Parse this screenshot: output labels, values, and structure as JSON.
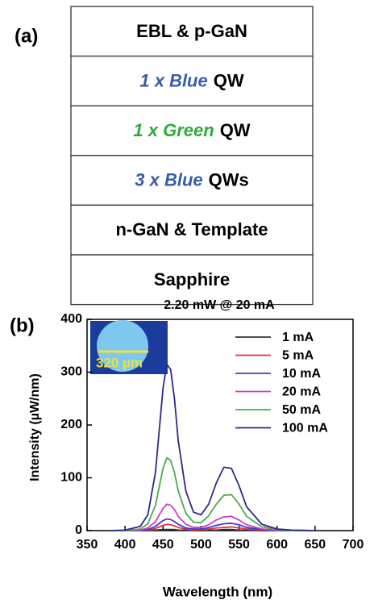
{
  "panel_a": {
    "label": "(a)",
    "layers": [
      {
        "parts": [
          {
            "text": "EBL & p-GaN"
          }
        ]
      },
      {
        "parts": [
          {
            "text": "1 x Blue",
            "color": "#3a5cad",
            "italic": true
          },
          {
            "text": "QW"
          }
        ]
      },
      {
        "parts": [
          {
            "text": "1 x Green",
            "color": "#2eaa3c",
            "italic": true
          },
          {
            "text": "QW"
          }
        ]
      },
      {
        "parts": [
          {
            "text": "3 x Blue",
            "color": "#3a5cad",
            "italic": true
          },
          {
            "text": "QWs"
          }
        ]
      },
      {
        "parts": [
          {
            "text": "n-GaN & Template"
          }
        ]
      },
      {
        "parts": [
          {
            "text": "Sapphire"
          }
        ]
      }
    ]
  },
  "chart_data": {
    "type": "line",
    "panel_label": "(b)",
    "title": "2.20 mW @ 20 mA",
    "x_label": "Wavelength (nm)",
    "y_label": "Intensity (µW/nm)",
    "inset_label": "320 µm",
    "x": [
      380,
      400,
      420,
      430,
      440,
      450,
      455,
      460,
      465,
      470,
      480,
      490,
      500,
      510,
      520,
      530,
      540,
      550,
      560,
      580,
      600,
      620,
      650
    ],
    "series": [
      {
        "name": "1 mA",
        "color": "#333333",
        "values": [
          0,
          0,
          0,
          0,
          1,
          2,
          2,
          2,
          2,
          1,
          1,
          0,
          0,
          1,
          1,
          2,
          2,
          1,
          1,
          0,
          0,
          0,
          0
        ]
      },
      {
        "name": "5 mA",
        "color": "#e8323c",
        "values": [
          0,
          0,
          0,
          1,
          4,
          10,
          12,
          11,
          9,
          6,
          3,
          1,
          2,
          3,
          5,
          6,
          7,
          5,
          3,
          1,
          0,
          0,
          0
        ]
      },
      {
        "name": "10 mA",
        "color": "#3c3cd0",
        "values": [
          0,
          0,
          0,
          2,
          8,
          19,
          22,
          21,
          17,
          12,
          5,
          3,
          3,
          6,
          10,
          13,
          14,
          11,
          6,
          2,
          0,
          0,
          0
        ]
      },
      {
        "name": "20 mA",
        "color": "#d23cc8",
        "values": [
          0,
          0,
          1,
          5,
          17,
          42,
          50,
          48,
          40,
          27,
          12,
          6,
          6,
          11,
          20,
          26,
          27,
          20,
          11,
          3,
          1,
          0,
          0
        ]
      },
      {
        "name": "50 mA",
        "color": "#4caa4c",
        "values": [
          0,
          0,
          3,
          13,
          48,
          118,
          138,
          133,
          110,
          75,
          33,
          16,
          15,
          28,
          50,
          67,
          68,
          50,
          27,
          7,
          2,
          0,
          0
        ]
      },
      {
        "name": "100 mA",
        "color": "#2a2a8a",
        "values": [
          0,
          1,
          8,
          30,
          110,
          270,
          315,
          305,
          250,
          170,
          75,
          35,
          30,
          50,
          90,
          120,
          118,
          85,
          45,
          12,
          3,
          1,
          0
        ]
      }
    ],
    "xlim": [
      350,
      700
    ],
    "xticks": [
      350,
      400,
      450,
      500,
      550,
      600,
      650,
      700
    ],
    "ylim": [
      0,
      400
    ],
    "yticks": [
      0,
      100,
      200,
      300,
      400
    ],
    "legend": "upper right"
  }
}
